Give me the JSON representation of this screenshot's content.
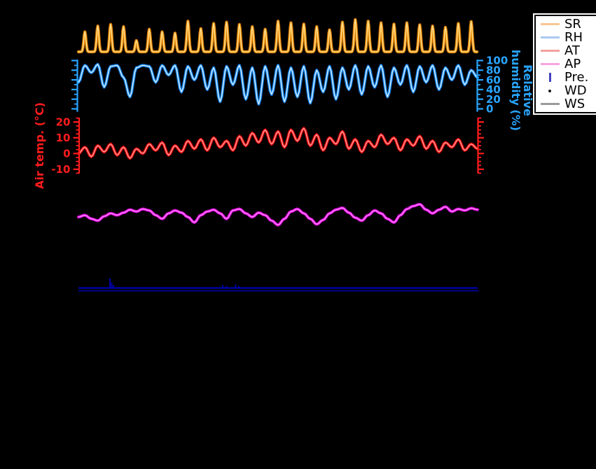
{
  "background": "#000000",
  "axes": {
    "at": {
      "title": "Air temp. (°C)",
      "color": "#ff1c1c"
    },
    "rh": {
      "title": "Relative humidity (%)",
      "title_lines": [
        "Relative",
        "humidity (%)"
      ],
      "color": "#29a5ff"
    }
  },
  "legend": {
    "position": "upper right",
    "items": [
      {
        "label": "SR",
        "swatch": "line",
        "color": "#f6c794"
      },
      {
        "label": "RH",
        "swatch": "line",
        "color": "#a9c9ef"
      },
      {
        "label": "AT",
        "swatch": "line",
        "color": "#f1a29e"
      },
      {
        "label": "AP",
        "swatch": "line",
        "color": "#f8a3e3"
      },
      {
        "label": "Pre.",
        "swatch": "vbar",
        "color": "#4343bf"
      },
      {
        "label": "WD",
        "swatch": "dot",
        "color": "#1a1a1a"
      },
      {
        "label": "WS",
        "swatch": "line",
        "color": "#9a9a9a"
      }
    ]
  },
  "chart_data": {
    "type": "line",
    "title": "",
    "x_span_days": 31,
    "x_axis_labels_visible": false,
    "legend_entries": [
      "SR",
      "RH",
      "AT",
      "AP",
      "Pre.",
      "WD",
      "WS"
    ],
    "panels": {
      "sr": {
        "name": "SR",
        "units": "relative (no axis shown)",
        "color": "#ffa81e",
        "edge": "#cf7600",
        "core": "#ffe3a0",
        "daily_peaks": [
          0.62,
          0.8,
          0.85,
          0.78,
          0.35,
          0.7,
          0.62,
          0.58,
          0.95,
          0.72,
          0.88,
          0.92,
          0.85,
          0.78,
          0.7,
          0.95,
          0.9,
          0.86,
          0.78,
          0.68,
          0.92,
          1.0,
          0.95,
          0.9,
          0.86,
          0.9,
          0.84,
          0.8,
          0.76,
          0.88,
          0.94
        ]
      },
      "rh": {
        "name": "RH",
        "axis_side": "right",
        "ylim": [
          0,
          100
        ],
        "ticks": [
          100,
          80,
          60,
          40,
          20,
          0
        ],
        "minor_tick_step": 10,
        "color": "#3da8ff",
        "edge": "#0a6fd2",
        "core": "#e8f5ff",
        "x_step_days": 0.5,
        "values": [
          55,
          90,
          75,
          92,
          45,
          88,
          90,
          65,
          25,
          85,
          90,
          88,
          55,
          90,
          70,
          90,
          35,
          88,
          60,
          90,
          40,
          85,
          15,
          88,
          50,
          90,
          20,
          85,
          10,
          88,
          30,
          90,
          15,
          85,
          25,
          88,
          12,
          80,
          35,
          88,
          20,
          85,
          40,
          90,
          30,
          88,
          45,
          90,
          25,
          85,
          50,
          90,
          35,
          88,
          55,
          90,
          40,
          85,
          60,
          90,
          50,
          80,
          65
        ]
      },
      "at": {
        "name": "AT",
        "axis_side": "left",
        "ylim": [
          -12.8,
          22.8
        ],
        "ticks": [
          20,
          10,
          0,
          -10
        ],
        "minor_tick_step": 2.5,
        "color": "#ff2020",
        "edge": "#c80000",
        "core": "#ffb3b3",
        "x_step_days": 0.5,
        "values": [
          0,
          4,
          -2,
          5,
          1,
          6,
          -1,
          4,
          -3,
          3,
          0,
          6,
          2,
          7,
          -1,
          5,
          1,
          8,
          3,
          9,
          2,
          10,
          4,
          8,
          2,
          11,
          5,
          13,
          7,
          15,
          6,
          14,
          4,
          15,
          8,
          16,
          5,
          12,
          2,
          10,
          6,
          14,
          3,
          9,
          1,
          8,
          4,
          12,
          6,
          10,
          2,
          9,
          5,
          11,
          3,
          8,
          1,
          7,
          4,
          9,
          2,
          6,
          3
        ]
      },
      "ap": {
        "name": "AP",
        "units": "relative (no axis shown)",
        "color": "#ff1fff",
        "edge": "#b700b7",
        "core": "#ff9cff",
        "x_step_days": 0.5,
        "values": [
          0.5,
          0.55,
          0.45,
          0.4,
          0.52,
          0.6,
          0.55,
          0.62,
          0.7,
          0.65,
          0.72,
          0.68,
          0.55,
          0.45,
          0.6,
          0.68,
          0.62,
          0.5,
          0.35,
          0.55,
          0.65,
          0.7,
          0.6,
          0.45,
          0.68,
          0.72,
          0.6,
          0.5,
          0.62,
          0.55,
          0.4,
          0.28,
          0.45,
          0.65,
          0.72,
          0.6,
          0.45,
          0.3,
          0.42,
          0.6,
          0.7,
          0.75,
          0.62,
          0.48,
          0.4,
          0.55,
          0.68,
          0.6,
          0.45,
          0.35,
          0.55,
          0.72,
          0.8,
          0.85,
          0.7,
          0.6,
          0.7,
          0.78,
          0.65,
          0.72,
          0.68,
          0.74,
          0.7
        ]
      },
      "pre": {
        "name": "Pre.",
        "baseline": 0,
        "color": "#0000a8",
        "spikes": [
          {
            "day": 2.45,
            "amount": 1.0
          },
          {
            "day": 2.58,
            "amount": 0.55
          },
          {
            "day": 2.72,
            "amount": 0.3
          },
          {
            "day": 11.2,
            "amount": 0.3
          },
          {
            "day": 11.5,
            "amount": 0.2
          },
          {
            "day": 12.2,
            "amount": 0.35
          },
          {
            "day": 12.45,
            "amount": 0.22
          }
        ]
      }
    }
  }
}
